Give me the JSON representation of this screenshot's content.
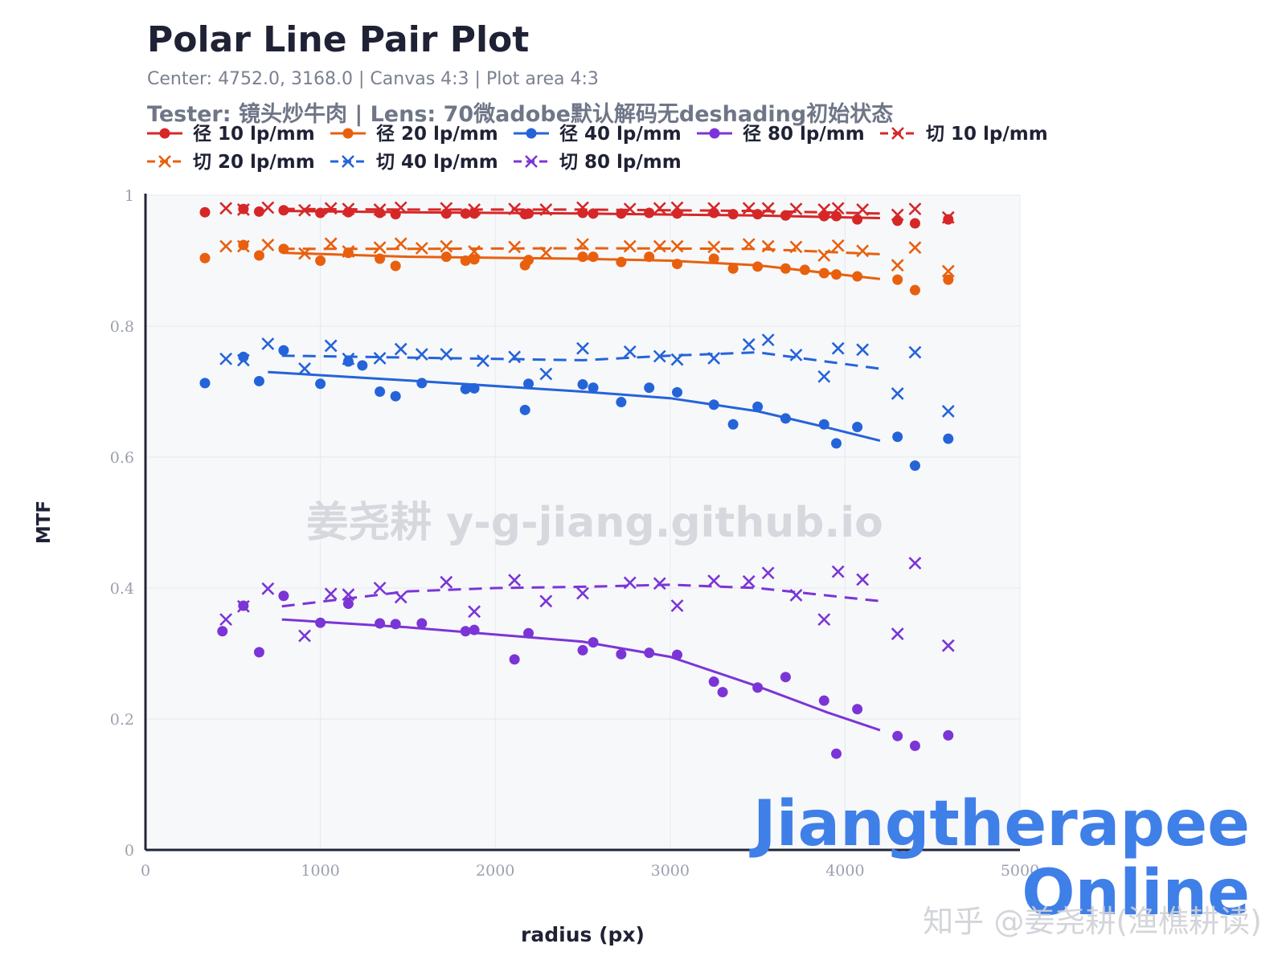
{
  "title": "Polar Line Pair Plot",
  "subtitle": "Center: 4752.0, 3168.0 | Canvas 4:3 | Plot area 4:3",
  "tester": "Tester: 镜头炒牛肉 | Lens: 70微adobe默认解码无deshading初始状态",
  "watermark": "姜尧耕 y-g-jiang.github.io",
  "brand_line1": "Jiangtherapee",
  "brand_line2": "Online",
  "zhihu_credit": "知乎 @姜尧耕(渔樵耕读)",
  "colors": {
    "red": "#d62728",
    "orange": "#e8600e",
    "blue": "#2563d9",
    "purple": "#7b35d6",
    "brand": "#3f7fe8"
  },
  "chart_data": {
    "type": "scatter",
    "xlabel": "radius (px)",
    "ylabel": "MTF",
    "xlim": [
      0,
      5000
    ],
    "ylim": [
      0,
      1
    ],
    "x_ticks": [
      0,
      1000,
      2000,
      3000,
      4000,
      5000
    ],
    "x_tick_labels": [
      "0",
      "1000",
      "2000",
      "3000",
      "4000",
      "5000"
    ],
    "y_ticks": [
      0,
      0.2,
      0.4,
      0.6,
      0.8,
      1
    ],
    "y_tick_labels": [
      "0",
      "0.2",
      "0.4",
      "0.6",
      "0.8",
      "1"
    ],
    "grid": true,
    "legend_position": "top-left",
    "series": [
      {
        "name": "径 10 lp/mm",
        "color": "red",
        "marker": "circle",
        "dash": "solid",
        "points": [
          [
            340,
            0.974
          ],
          [
            560,
            0.979
          ],
          [
            650,
            0.975
          ],
          [
            790,
            0.977
          ],
          [
            1000,
            0.973
          ],
          [
            1160,
            0.974
          ],
          [
            1340,
            0.973
          ],
          [
            1430,
            0.971
          ],
          [
            1720,
            0.972
          ],
          [
            1830,
            0.972
          ],
          [
            1880,
            0.972
          ],
          [
            2170,
            0.971
          ],
          [
            2190,
            0.972
          ],
          [
            2500,
            0.973
          ],
          [
            2560,
            0.972
          ],
          [
            2720,
            0.972
          ],
          [
            2880,
            0.973
          ],
          [
            3040,
            0.972
          ],
          [
            3250,
            0.973
          ],
          [
            3360,
            0.971
          ],
          [
            3500,
            0.971
          ],
          [
            3660,
            0.969
          ],
          [
            3880,
            0.968
          ],
          [
            3950,
            0.968
          ],
          [
            4070,
            0.963
          ],
          [
            4300,
            0.961
          ],
          [
            4400,
            0.957
          ],
          [
            4590,
            0.963
          ]
        ],
        "fit": [
          [
            790,
            0.976
          ],
          [
            1500,
            0.974
          ],
          [
            2500,
            0.972
          ],
          [
            3500,
            0.969
          ],
          [
            4200,
            0.965
          ]
        ]
      },
      {
        "name": "径 20 lp/mm",
        "color": "orange",
        "marker": "circle",
        "dash": "solid",
        "points": [
          [
            340,
            0.904
          ],
          [
            560,
            0.924
          ],
          [
            650,
            0.908
          ],
          [
            790,
            0.918
          ],
          [
            1000,
            0.9
          ],
          [
            1160,
            0.912
          ],
          [
            1340,
            0.903
          ],
          [
            1430,
            0.892
          ],
          [
            1720,
            0.906
          ],
          [
            1830,
            0.9
          ],
          [
            1880,
            0.902
          ],
          [
            2170,
            0.893
          ],
          [
            2190,
            0.901
          ],
          [
            2500,
            0.906
          ],
          [
            2560,
            0.906
          ],
          [
            2720,
            0.898
          ],
          [
            2880,
            0.906
          ],
          [
            3040,
            0.895
          ],
          [
            3250,
            0.903
          ],
          [
            3360,
            0.888
          ],
          [
            3500,
            0.891
          ],
          [
            3660,
            0.888
          ],
          [
            3770,
            0.886
          ],
          [
            3880,
            0.881
          ],
          [
            3950,
            0.879
          ],
          [
            4070,
            0.876
          ],
          [
            4300,
            0.871
          ],
          [
            4400,
            0.855
          ],
          [
            4590,
            0.871
          ]
        ],
        "fit": [
          [
            790,
            0.912
          ],
          [
            1500,
            0.906
          ],
          [
            2500,
            0.903
          ],
          [
            3000,
            0.9
          ],
          [
            3500,
            0.893
          ],
          [
            4200,
            0.872
          ]
        ]
      },
      {
        "name": "径 40 lp/mm",
        "color": "blue",
        "marker": "circle",
        "dash": "solid",
        "points": [
          [
            340,
            0.713
          ],
          [
            560,
            0.753
          ],
          [
            650,
            0.716
          ],
          [
            790,
            0.763
          ],
          [
            1000,
            0.712
          ],
          [
            1160,
            0.746
          ],
          [
            1240,
            0.74
          ],
          [
            1340,
            0.7
          ],
          [
            1430,
            0.693
          ],
          [
            1580,
            0.713
          ],
          [
            1830,
            0.704
          ],
          [
            1880,
            0.705
          ],
          [
            2170,
            0.672
          ],
          [
            2190,
            0.712
          ],
          [
            2500,
            0.711
          ],
          [
            2560,
            0.706
          ],
          [
            2720,
            0.684
          ],
          [
            2880,
            0.706
          ],
          [
            3040,
            0.699
          ],
          [
            3250,
            0.68
          ],
          [
            3360,
            0.65
          ],
          [
            3500,
            0.677
          ],
          [
            3660,
            0.659
          ],
          [
            3880,
            0.65
          ],
          [
            3950,
            0.621
          ],
          [
            4070,
            0.646
          ],
          [
            4300,
            0.631
          ],
          [
            4400,
            0.587
          ],
          [
            4590,
            0.628
          ]
        ],
        "fit": [
          [
            700,
            0.73
          ],
          [
            1500,
            0.717
          ],
          [
            2500,
            0.7
          ],
          [
            3000,
            0.69
          ],
          [
            3500,
            0.67
          ],
          [
            3900,
            0.645
          ],
          [
            4200,
            0.625
          ]
        ]
      },
      {
        "name": "径 80 lp/mm",
        "color": "purple",
        "marker": "circle",
        "dash": "solid",
        "points": [
          [
            440,
            0.334
          ],
          [
            560,
            0.373
          ],
          [
            650,
            0.302
          ],
          [
            790,
            0.388
          ],
          [
            1000,
            0.347
          ],
          [
            1160,
            0.376
          ],
          [
            1340,
            0.346
          ],
          [
            1430,
            0.345
          ],
          [
            1580,
            0.346
          ],
          [
            1830,
            0.334
          ],
          [
            1880,
            0.336
          ],
          [
            2110,
            0.291
          ],
          [
            2190,
            0.331
          ],
          [
            2500,
            0.305
          ],
          [
            2560,
            0.317
          ],
          [
            2720,
            0.299
          ],
          [
            2880,
            0.301
          ],
          [
            3040,
            0.298
          ],
          [
            3250,
            0.257
          ],
          [
            3300,
            0.241
          ],
          [
            3500,
            0.248
          ],
          [
            3660,
            0.264
          ],
          [
            3880,
            0.228
          ],
          [
            3950,
            0.147
          ],
          [
            4070,
            0.215
          ],
          [
            4300,
            0.174
          ],
          [
            4400,
            0.159
          ],
          [
            4590,
            0.175
          ]
        ],
        "fit": [
          [
            780,
            0.352
          ],
          [
            1500,
            0.34
          ],
          [
            2500,
            0.318
          ],
          [
            3000,
            0.295
          ],
          [
            3500,
            0.25
          ],
          [
            3900,
            0.21
          ],
          [
            4200,
            0.183
          ]
        ]
      },
      {
        "name": "切 10 lp/mm",
        "color": "red",
        "marker": "x",
        "dash": "dash",
        "points": [
          [
            460,
            0.98
          ],
          [
            560,
            0.978
          ],
          [
            700,
            0.981
          ],
          [
            910,
            0.977
          ],
          [
            1060,
            0.98
          ],
          [
            1160,
            0.979
          ],
          [
            1340,
            0.978
          ],
          [
            1460,
            0.981
          ],
          [
            1720,
            0.98
          ],
          [
            1880,
            0.978
          ],
          [
            2110,
            0.979
          ],
          [
            2290,
            0.978
          ],
          [
            2500,
            0.981
          ],
          [
            2770,
            0.979
          ],
          [
            2940,
            0.98
          ],
          [
            3040,
            0.981
          ],
          [
            3250,
            0.98
          ],
          [
            3450,
            0.98
          ],
          [
            3560,
            0.98
          ],
          [
            3720,
            0.979
          ],
          [
            3880,
            0.978
          ],
          [
            3960,
            0.98
          ],
          [
            4100,
            0.978
          ],
          [
            4300,
            0.97
          ],
          [
            4400,
            0.979
          ],
          [
            4590,
            0.966
          ]
        ],
        "fit": [
          [
            780,
            0.979
          ],
          [
            1500,
            0.978
          ],
          [
            2500,
            0.978
          ],
          [
            3500,
            0.976
          ],
          [
            4200,
            0.972
          ]
        ]
      },
      {
        "name": "切 20 lp/mm",
        "color": "orange",
        "marker": "x",
        "dash": "dash",
        "points": [
          [
            460,
            0.922
          ],
          [
            560,
            0.922
          ],
          [
            700,
            0.924
          ],
          [
            910,
            0.911
          ],
          [
            1060,
            0.926
          ],
          [
            1160,
            0.914
          ],
          [
            1340,
            0.92
          ],
          [
            1460,
            0.926
          ],
          [
            1580,
            0.919
          ],
          [
            1720,
            0.922
          ],
          [
            1880,
            0.914
          ],
          [
            2110,
            0.921
          ],
          [
            2290,
            0.912
          ],
          [
            2500,
            0.925
          ],
          [
            2770,
            0.922
          ],
          [
            2940,
            0.922
          ],
          [
            3040,
            0.922
          ],
          [
            3250,
            0.921
          ],
          [
            3450,
            0.925
          ],
          [
            3560,
            0.922
          ],
          [
            3720,
            0.921
          ],
          [
            3880,
            0.908
          ],
          [
            3960,
            0.923
          ],
          [
            4100,
            0.915
          ],
          [
            4300,
            0.893
          ],
          [
            4400,
            0.92
          ],
          [
            4590,
            0.884
          ]
        ],
        "fit": [
          [
            780,
            0.918
          ],
          [
            1500,
            0.918
          ],
          [
            2500,
            0.919
          ],
          [
            3500,
            0.918
          ],
          [
            4200,
            0.91
          ]
        ]
      },
      {
        "name": "切 40 lp/mm",
        "color": "blue",
        "marker": "x",
        "dash": "dash",
        "points": [
          [
            460,
            0.75
          ],
          [
            560,
            0.748
          ],
          [
            700,
            0.773
          ],
          [
            910,
            0.735
          ],
          [
            1060,
            0.77
          ],
          [
            1160,
            0.75
          ],
          [
            1340,
            0.751
          ],
          [
            1460,
            0.765
          ],
          [
            1580,
            0.757
          ],
          [
            1720,
            0.757
          ],
          [
            1930,
            0.747
          ],
          [
            2110,
            0.753
          ],
          [
            2290,
            0.727
          ],
          [
            2500,
            0.766
          ],
          [
            2770,
            0.761
          ],
          [
            2940,
            0.754
          ],
          [
            3040,
            0.749
          ],
          [
            3250,
            0.751
          ],
          [
            3450,
            0.772
          ],
          [
            3560,
            0.779
          ],
          [
            3720,
            0.756
          ],
          [
            3880,
            0.723
          ],
          [
            3960,
            0.766
          ],
          [
            4100,
            0.764
          ],
          [
            4300,
            0.697
          ],
          [
            4400,
            0.76
          ],
          [
            4590,
            0.67
          ]
        ],
        "fit": [
          [
            780,
            0.755
          ],
          [
            1500,
            0.752
          ],
          [
            2500,
            0.748
          ],
          [
            3000,
            0.755
          ],
          [
            3500,
            0.76
          ],
          [
            4200,
            0.735
          ]
        ]
      },
      {
        "name": "切 80 lp/mm",
        "color": "purple",
        "marker": "x",
        "dash": "dash",
        "points": [
          [
            460,
            0.352
          ],
          [
            560,
            0.372
          ],
          [
            700,
            0.399
          ],
          [
            910,
            0.327
          ],
          [
            1060,
            0.391
          ],
          [
            1160,
            0.39
          ],
          [
            1340,
            0.4
          ],
          [
            1460,
            0.386
          ],
          [
            1720,
            0.409
          ],
          [
            1880,
            0.364
          ],
          [
            2110,
            0.412
          ],
          [
            2290,
            0.38
          ],
          [
            2500,
            0.392
          ],
          [
            2770,
            0.408
          ],
          [
            2940,
            0.407
          ],
          [
            3040,
            0.373
          ],
          [
            3250,
            0.411
          ],
          [
            3450,
            0.41
          ],
          [
            3560,
            0.423
          ],
          [
            3720,
            0.389
          ],
          [
            3880,
            0.352
          ],
          [
            3960,
            0.425
          ],
          [
            4100,
            0.413
          ],
          [
            4300,
            0.33
          ],
          [
            4400,
            0.438
          ],
          [
            4590,
            0.312
          ]
        ],
        "fit": [
          [
            780,
            0.372
          ],
          [
            1500,
            0.395
          ],
          [
            2000,
            0.4
          ],
          [
            2500,
            0.402
          ],
          [
            3000,
            0.405
          ],
          [
            3500,
            0.4
          ],
          [
            4200,
            0.38
          ]
        ]
      }
    ]
  }
}
